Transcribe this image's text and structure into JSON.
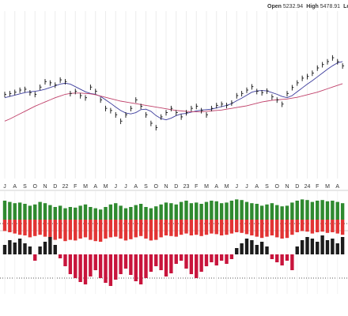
{
  "header": {
    "items": [
      {
        "label": "Open",
        "value": 5232.94
      },
      {
        "label": "High",
        "value": 5478.91
      },
      {
        "label": "Low"
      }
    ]
  },
  "chart_data": [
    {
      "type": "ohlc",
      "categories": [
        "J",
        null,
        "A",
        null,
        "S",
        null,
        "O",
        null,
        "N",
        null,
        "D",
        null,
        "22",
        null,
        "F",
        null,
        "M",
        null,
        "A",
        null,
        "M",
        null,
        "J",
        null,
        "J",
        null,
        "A",
        null,
        "S",
        null,
        "O",
        null,
        "N",
        null,
        "D",
        null,
        "23",
        null,
        "F",
        null,
        "M",
        null,
        "A",
        null,
        "M",
        null,
        "J",
        null,
        "J",
        null,
        "A",
        null,
        "S",
        null,
        "O",
        null,
        "N",
        null,
        "D",
        null,
        "24",
        null,
        "F",
        null,
        "M",
        null,
        "A",
        null
      ],
      "ylim": [
        2400,
        6300
      ],
      "color": "#111111",
      "high": [
        4440,
        4460,
        4490,
        4540,
        4560,
        4480,
        4440,
        4610,
        4740,
        4710,
        4660,
        4780,
        4740,
        4460,
        4510,
        4410,
        4360,
        4610,
        4510,
        4310,
        4110,
        4060,
        3960,
        3810,
        3960,
        4110,
        4310,
        4160,
        3960,
        3760,
        3660,
        3910,
        4010,
        4110,
        4010,
        3910,
        4010,
        4110,
        4160,
        4060,
        3960,
        4110,
        4180,
        4210,
        4180,
        4240,
        4410,
        4460,
        4540,
        4620,
        4510,
        4480,
        4520,
        4380,
        4310,
        4210,
        4460,
        4600,
        4710,
        4820,
        4860,
        4940,
        5060,
        5140,
        5210,
        5300,
        5210,
        5110
      ],
      "low": [
        4310,
        4330,
        4360,
        4410,
        4430,
        4350,
        4310,
        4480,
        4610,
        4580,
        4530,
        4650,
        4610,
        4330,
        4380,
        4280,
        4230,
        4480,
        4380,
        4180,
        3980,
        3930,
        3830,
        3680,
        3830,
        3980,
        4180,
        4030,
        3830,
        3630,
        3530,
        3780,
        3880,
        3980,
        3880,
        3780,
        3880,
        3980,
        4030,
        3930,
        3830,
        3980,
        4050,
        4080,
        4050,
        4110,
        4280,
        4330,
        4410,
        4490,
        4380,
        4350,
        4390,
        4250,
        4180,
        4080,
        4330,
        4470,
        4580,
        4690,
        4730,
        4810,
        4930,
        5010,
        5080,
        5170,
        5080,
        4980
      ],
      "close": [
        4380,
        4400,
        4430,
        4480,
        4500,
        4420,
        4380,
        4550,
        4680,
        4650,
        4600,
        4720,
        4680,
        4400,
        4450,
        4350,
        4300,
        4550,
        4450,
        4250,
        4050,
        4000,
        3900,
        3750,
        3900,
        4050,
        4250,
        4100,
        3900,
        3700,
        3600,
        3850,
        3950,
        4050,
        3950,
        3850,
        3950,
        4050,
        4100,
        4000,
        3900,
        4050,
        4120,
        4150,
        4120,
        4180,
        4350,
        4400,
        4480,
        4560,
        4450,
        4420,
        4460,
        4320,
        4250,
        4150,
        4400,
        4540,
        4650,
        4760,
        4800,
        4880,
        5000,
        5080,
        5150,
        5240,
        5150,
        5050
      ],
      "moving_averages": [
        {
          "color": "#3c3c9c",
          "values": [
            4300,
            4330,
            4360,
            4390,
            4420,
            4440,
            4450,
            4470,
            4500,
            4540,
            4580,
            4620,
            4640,
            4620,
            4560,
            4500,
            4440,
            4400,
            4380,
            4330,
            4250,
            4170,
            4080,
            4000,
            3940,
            3920,
            3950,
            4020,
            4030,
            3980,
            3880,
            3810,
            3780,
            3820,
            3880,
            3920,
            3930,
            3960,
            3990,
            4010,
            4020,
            4030,
            4060,
            4090,
            4120,
            4160,
            4230,
            4290,
            4360,
            4430,
            4460,
            4470,
            4460,
            4420,
            4380,
            4330,
            4300,
            4350,
            4440,
            4530,
            4620,
            4700,
            4790,
            4880,
            4970,
            5050,
            5120,
            5150
          ]
        },
        {
          "color": "#c0406a",
          "values": [
            3750,
            3800,
            3860,
            3920,
            3980,
            4040,
            4100,
            4150,
            4200,
            4250,
            4300,
            4340,
            4380,
            4400,
            4410,
            4410,
            4400,
            4390,
            4370,
            4340,
            4310,
            4280,
            4250,
            4220,
            4200,
            4180,
            4160,
            4140,
            4120,
            4100,
            4080,
            4060,
            4040,
            4020,
            4000,
            3990,
            3980,
            3970,
            3970,
            3970,
            3980,
            3990,
            4000,
            4010,
            4030,
            4050,
            4070,
            4090,
            4110,
            4140,
            4170,
            4200,
            4220,
            4240,
            4250,
            4260,
            4270,
            4290,
            4310,
            4340,
            4370,
            4400,
            4430,
            4470,
            4510,
            4550,
            4590,
            4630
          ]
        }
      ]
    },
    {
      "type": "bar",
      "ylim": [
        -40,
        40
      ],
      "series": [
        {
          "color": "#2f8a2f",
          "values": [
            30,
            28,
            26,
            27,
            25,
            22,
            24,
            28,
            26,
            23,
            20,
            22,
            18,
            20,
            19,
            22,
            24,
            20,
            18,
            16,
            20,
            24,
            26,
            22,
            18,
            20,
            23,
            25,
            20,
            18,
            21,
            24,
            27,
            26,
            24,
            28,
            30,
            26,
            27,
            25,
            28,
            30,
            29,
            26,
            27,
            30,
            32,
            31,
            28,
            26,
            25,
            22,
            24,
            26,
            23,
            21,
            22,
            27,
            30,
            32,
            31,
            28,
            30,
            31,
            29,
            30,
            28,
            26
          ]
        },
        {
          "color": "#e23434",
          "values": [
            -18,
            -20,
            -22,
            -24,
            -25,
            -28,
            -26,
            -24,
            -27,
            -30,
            -32,
            -30,
            -34,
            -32,
            -33,
            -30,
            -28,
            -32,
            -34,
            -35,
            -30,
            -28,
            -27,
            -30,
            -33,
            -31,
            -28,
            -26,
            -30,
            -33,
            -32,
            -28,
            -25,
            -26,
            -27,
            -24,
            -22,
            -25,
            -24,
            -26,
            -24,
            -22,
            -23,
            -25,
            -24,
            -22,
            -20,
            -21,
            -23,
            -25,
            -27,
            -29,
            -27,
            -25,
            -28,
            -30,
            -29,
            -24,
            -20,
            -18,
            -19,
            -22,
            -20,
            -19,
            -21,
            -20,
            -22,
            -24
          ]
        }
      ]
    },
    {
      "type": "bar",
      "ylim": [
        -45,
        30
      ],
      "color": "#1c1c1c",
      "negative_color": "#c8143c",
      "values": [
        12,
        18,
        15,
        20,
        14,
        10,
        -8,
        10,
        16,
        22,
        12,
        -5,
        -15,
        -25,
        -30,
        -35,
        -38,
        -28,
        -20,
        -30,
        -36,
        -40,
        -32,
        -25,
        -18,
        -26,
        -34,
        -38,
        -30,
        -22,
        -15,
        -20,
        -28,
        -24,
        -12,
        -8,
        -18,
        -25,
        -30,
        -22,
        -15,
        -10,
        -14,
        -8,
        -12,
        -6,
        8,
        14,
        20,
        18,
        12,
        16,
        10,
        -6,
        -10,
        -14,
        -8,
        -20,
        10,
        18,
        22,
        20,
        16,
        24,
        18,
        20,
        14,
        22
      ]
    }
  ]
}
